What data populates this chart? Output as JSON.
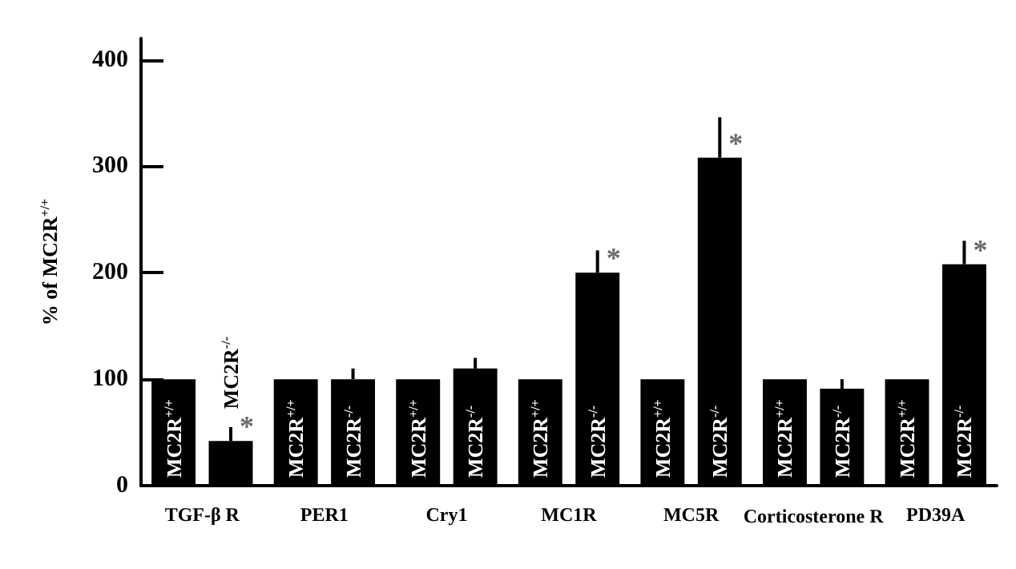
{
  "chart_data": {
    "type": "bar",
    "ylabel": "% of MC2R$^{+/+}$",
    "categories": [
      "TGF-β R",
      "PER1",
      "Cry1",
      "MC1R",
      "MC5R",
      "Corticosterone R",
      "PD39A"
    ],
    "series": [
      {
        "color": "#000000",
        "values": [
          100,
          100,
          100,
          100,
          100,
          100,
          100
        ],
        "value_labels": [
          "MC2R$^{+/+}$",
          "MC2R$^{+/+}$",
          "MC2R$^{+/+}$",
          "MC2R$^{+/+}$",
          "MC2R$^{+/+}$",
          "MC2R$^{+/+}$",
          "MC2R$^{+/+}$"
        ]
      },
      {
        "color": "#000000",
        "values": [
          42,
          100,
          110,
          200,
          308,
          91,
          208
        ],
        "value_labels": [
          "MC2R$^{-/-}$",
          "MC2R$^{-/-}$",
          "MC2R$^{-/-}$",
          "MC2R$^{-/-}$",
          "MC2R$^{-/-}$",
          "MC2R$^{-/-}$",
          "MC2R$^{-/-}$"
        ],
        "errors": [
          [
            42,
            55
          ],
          [
            100,
            110
          ],
          [
            110,
            120
          ],
          [
            200,
            221
          ],
          [
            308,
            346
          ],
          [
            91,
            100
          ],
          [
            208,
            230
          ]
        ]
      }
    ],
    "ylim": [
      0,
      420
    ],
    "yticks": [
      0,
      100,
      200,
      300,
      400
    ],
    "grid": false,
    "annotations": [
      {
        "text": "*",
        "x": "TGF-β R",
        "y": 42
      },
      {
        "text": "*",
        "x": "MC1R",
        "y": 200
      },
      {
        "text": "*",
        "x": "MC5R",
        "y": 308
      },
      {
        "text": "*",
        "x": "PD39A",
        "y": 208
      }
    ]
  }
}
